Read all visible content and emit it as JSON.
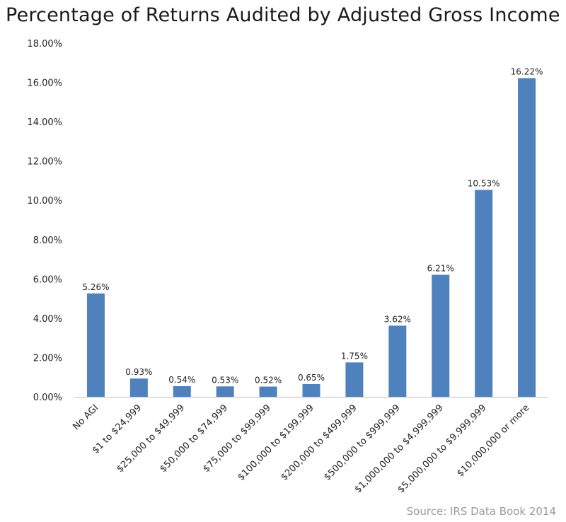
{
  "chart_data": {
    "type": "bar",
    "title": "Percentage of Returns Audited by Adjusted Gross Income",
    "xlabel": "",
    "ylabel": "",
    "ylim": [
      0,
      18
    ],
    "yticks": [
      "0.00%",
      "2.00%",
      "4.00%",
      "6.00%",
      "8.00%",
      "10.00%",
      "12.00%",
      "14.00%",
      "16.00%",
      "18.00%"
    ],
    "ytick_values": [
      0,
      2,
      4,
      6,
      8,
      10,
      12,
      14,
      16,
      18
    ],
    "grid": false,
    "categories": [
      "No AGI",
      "$1 to $24,999",
      "$25,000 to $49,999",
      "$50,000 to $74,999",
      "$75,000 to $99,999",
      "$100,000 to $199,999",
      "$200,000 to $499,999",
      "$500,000 to $999,999",
      "$1,000,000 to $4,999,999",
      "$5,000,000 to $9,999,999",
      "$10,000,000 or more"
    ],
    "values": [
      5.26,
      0.93,
      0.54,
      0.53,
      0.52,
      0.65,
      1.75,
      3.62,
      6.21,
      10.53,
      16.22
    ],
    "data_labels": [
      "5.26%",
      "0.93%",
      "0.54%",
      "0.53%",
      "0.52%",
      "0.65%",
      "1.75%",
      "3.62%",
      "6.21%",
      "10.53%",
      "16.22%"
    ],
    "bar_color": "#4f81bd",
    "source": "Source: IRS Data Book 2014"
  }
}
